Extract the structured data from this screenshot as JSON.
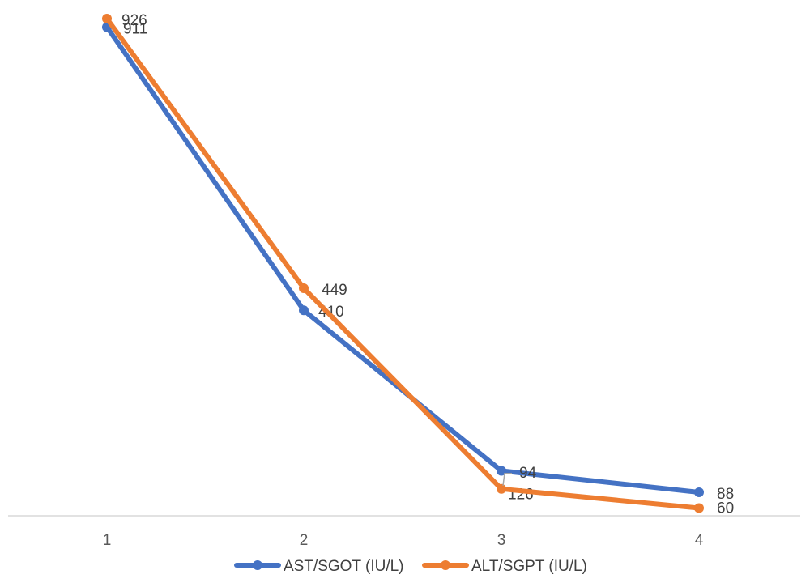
{
  "chart_data": {
    "type": "line",
    "title": "",
    "xlabel": "",
    "ylabel": "",
    "categories": [
      "1",
      "2",
      "3",
      "4"
    ],
    "y_axis_shown": false,
    "grid": false,
    "legend_position": "bottom",
    "series": [
      {
        "name": "AST/SGOT (IU/L)",
        "color": "#4472C4",
        "values": [
          911,
          410,
          126,
          88
        ],
        "data_labels": [
          "911",
          "410",
          "126",
          "88"
        ]
      },
      {
        "name": "ALT/SGPT (IU/L)",
        "color": "#ED7D31",
        "values": [
          926,
          449,
          94,
          60
        ],
        "data_labels": [
          "926",
          "449",
          "94",
          "60"
        ]
      }
    ]
  }
}
